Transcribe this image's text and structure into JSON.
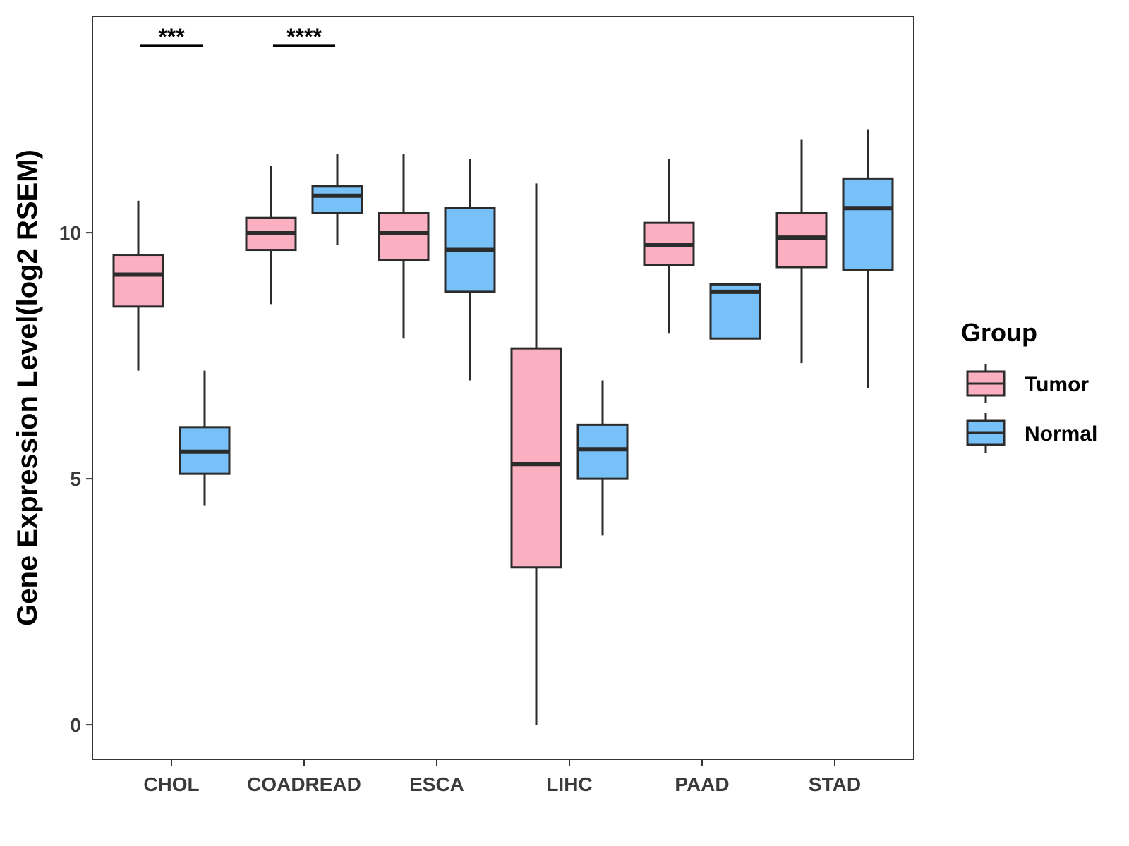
{
  "chart_data": {
    "type": "boxplot",
    "title": "",
    "xlabel": "",
    "ylabel": "Gene Expression Level(log2 RSEM)",
    "ylim": [
      -0.7,
      14.4
    ],
    "yticks": [
      0,
      5,
      10
    ],
    "grid": false,
    "categories": [
      "CHOL",
      "COADREAD",
      "ESCA",
      "LIHC",
      "PAAD",
      "STAD"
    ],
    "legend": {
      "title": "Group",
      "position": "right",
      "entries": [
        {
          "name": "Tumor",
          "color": "#FBB0C2"
        },
        {
          "name": "Normal",
          "color": "#78C1F8"
        }
      ]
    },
    "series": [
      {
        "name": "Tumor",
        "color": "#FBB0C2",
        "boxes": [
          {
            "min": 7.2,
            "q1": 8.5,
            "median": 9.15,
            "q3": 9.55,
            "max": 10.65
          },
          {
            "min": 8.55,
            "q1": 9.65,
            "median": 10.0,
            "q3": 10.3,
            "max": 11.35
          },
          {
            "min": 7.85,
            "q1": 9.45,
            "median": 10.0,
            "q3": 10.4,
            "max": 11.6
          },
          {
            "min": 0.0,
            "q1": 3.2,
            "median": 5.3,
            "q3": 7.65,
            "max": 11.0
          },
          {
            "min": 7.95,
            "q1": 9.35,
            "median": 9.75,
            "q3": 10.2,
            "max": 11.5
          },
          {
            "min": 7.35,
            "q1": 9.3,
            "median": 9.9,
            "q3": 10.4,
            "max": 11.9
          }
        ]
      },
      {
        "name": "Normal",
        "color": "#78C1F8",
        "boxes": [
          {
            "min": 4.45,
            "q1": 5.1,
            "median": 5.55,
            "q3": 6.05,
            "max": 7.2
          },
          {
            "min": 9.75,
            "q1": 10.4,
            "median": 10.75,
            "q3": 10.95,
            "max": 11.6
          },
          {
            "min": 7.0,
            "q1": 8.8,
            "median": 9.65,
            "q3": 10.5,
            "max": 11.5
          },
          {
            "min": 3.85,
            "q1": 5.0,
            "median": 5.6,
            "q3": 6.1,
            "max": 7.0
          },
          {
            "min": 7.85,
            "q1": 7.85,
            "median": 8.8,
            "q3": 8.95,
            "max": 8.95
          },
          {
            "min": 6.85,
            "q1": 9.25,
            "median": 10.5,
            "q3": 11.1,
            "max": 12.1
          }
        ]
      }
    ],
    "annotations": [
      {
        "category": "CHOL",
        "text": "***",
        "y": 13.8
      },
      {
        "category": "COADREAD",
        "text": "****",
        "y": 13.8
      }
    ]
  }
}
